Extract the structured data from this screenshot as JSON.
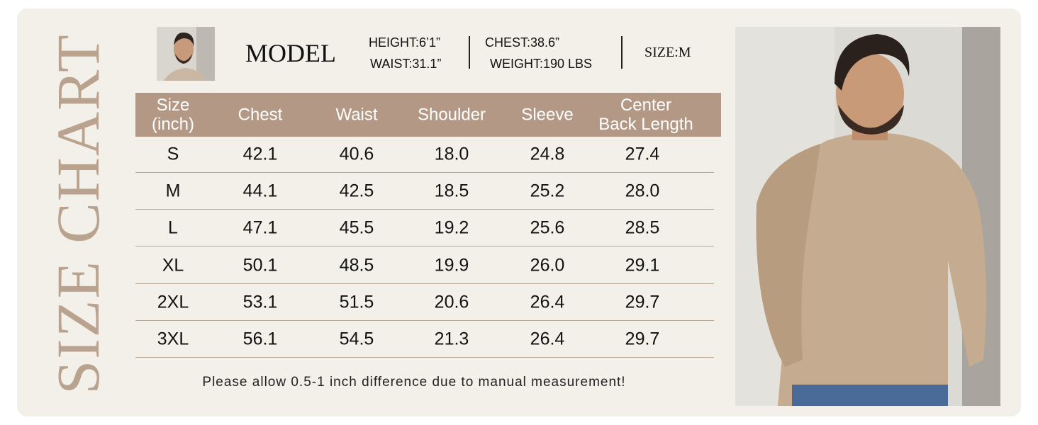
{
  "header": {
    "title": "SIZE CHART"
  },
  "model": {
    "label": "MODEL",
    "height": "HEIGHT:6’1”",
    "waist": "WAIST:31.1”",
    "chest": "CHEST:38.6”",
    "weight": "WEIGHT:190 LBS",
    "size": "SIZE:M"
  },
  "table": {
    "columns": [
      "Size\n(inch)",
      "Chest",
      "Waist",
      "Shoulder",
      "Sleeve",
      "Center\nBack Length"
    ],
    "rows": [
      [
        "S",
        "42.1",
        "40.6",
        "18.0",
        "24.8",
        "27.4"
      ],
      [
        "M",
        "44.1",
        "42.5",
        "18.5",
        "25.2",
        "28.0"
      ],
      [
        "L",
        "47.1",
        "45.5",
        "19.2",
        "25.6",
        "28.5"
      ],
      [
        "XL",
        "50.1",
        "48.5",
        "19.9",
        "26.0",
        "29.1"
      ],
      [
        "2XL",
        "53.1",
        "51.5",
        "20.6",
        "26.4",
        "29.7"
      ],
      [
        "3XL",
        "56.1",
        "54.5",
        "21.3",
        "26.4",
        "29.7"
      ]
    ]
  },
  "note": "Please allow 0.5-1 inch difference due to manual measurement!"
}
